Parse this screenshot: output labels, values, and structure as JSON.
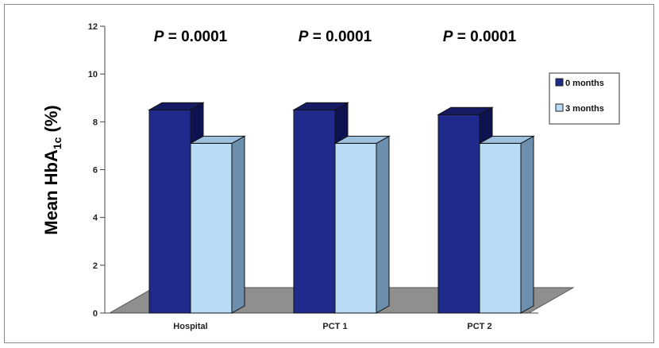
{
  "chart_data": {
    "type": "bar",
    "categories": [
      "Hospital",
      "PCT 1",
      "PCT 2"
    ],
    "series": [
      {
        "name": "0 months",
        "values": [
          8.5,
          8.5,
          8.3
        ],
        "color": "#1f2a8c"
      },
      {
        "name": "3 months",
        "values": [
          7.1,
          7.1,
          7.1
        ],
        "color": "#b9dcf6"
      }
    ],
    "ylabel": {
      "main": "Mean HbA",
      "subscript": "1c",
      "unit": " (%)"
    },
    "ylim": [
      0,
      12
    ],
    "yticks": [
      "0",
      "2",
      "4",
      "6",
      "8",
      "10",
      "12"
    ],
    "annotations": [
      {
        "italic": "P",
        "rest": " = 0.0001"
      },
      {
        "italic": "P",
        "rest": " = 0.0001"
      },
      {
        "italic": "P",
        "rest": " = 0.0001"
      }
    ],
    "legend_position": "right",
    "grid": false,
    "style": "3d-column"
  }
}
